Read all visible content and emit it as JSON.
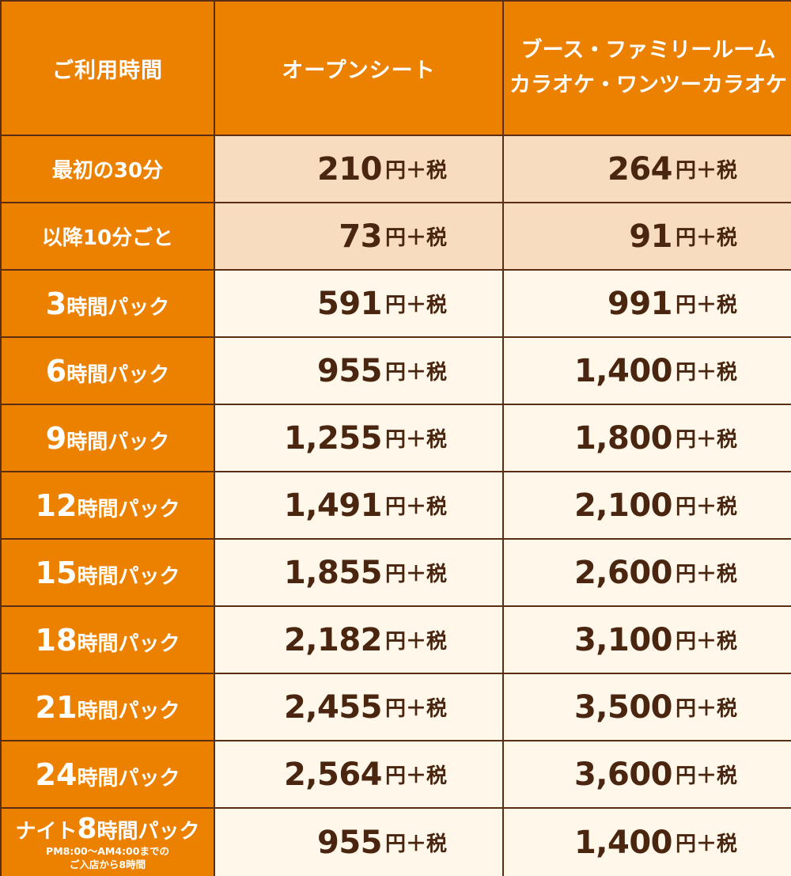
{
  "header": {
    "time_label": "ご利用時間",
    "open_seat": "オープンシート",
    "booth_line1": "ブース・ファミリールーム",
    "booth_line2": "カラオケ・ワンツーカラオケ"
  },
  "rows": [
    {
      "label_pre": "",
      "label_num": "",
      "label_text": "最初の30分",
      "open": "210",
      "booth": "264",
      "tinted": true
    },
    {
      "label_pre": "",
      "label_num": "",
      "label_text": "以降10分ごと",
      "open": "73",
      "booth": "91",
      "tinted": true
    },
    {
      "label_pre": "",
      "label_num": "3",
      "label_text": "時間パック",
      "open": "591",
      "booth": "991"
    },
    {
      "label_pre": "",
      "label_num": "6",
      "label_text": "時間パック",
      "open": "955",
      "booth": "1,400"
    },
    {
      "label_pre": "",
      "label_num": "9",
      "label_text": "時間パック",
      "open": "1,255",
      "booth": "1,800"
    },
    {
      "label_pre": "",
      "label_num": "12",
      "label_text": "時間パック",
      "open": "1,491",
      "booth": "2,100"
    },
    {
      "label_pre": "",
      "label_num": "15",
      "label_text": "時間パック",
      "open": "1,855",
      "booth": "2,600"
    },
    {
      "label_pre": "",
      "label_num": "18",
      "label_text": "時間パック",
      "open": "2,182",
      "booth": "3,100"
    },
    {
      "label_pre": "",
      "label_num": "21",
      "label_text": "時間パック",
      "open": "2,455",
      "booth": "3,500"
    },
    {
      "label_pre": "",
      "label_num": "24",
      "label_text": "時間パック",
      "open": "2,564",
      "booth": "3,600"
    },
    {
      "label_pre": "ナイト",
      "label_num": "8",
      "label_text": "時間パック",
      "note_line1": "PM8:00～AM4:00までの",
      "note_line2": "ご入店から8時間",
      "open": "955",
      "booth": "1,400"
    }
  ],
  "price_suffix": "円＋税",
  "colors": {
    "header_bg": "#ec8100",
    "tinted_bg": "#f7dcc0",
    "price_bg": "#fff8ea",
    "text_dark": "#4a250f",
    "border": "#5a2e12"
  }
}
